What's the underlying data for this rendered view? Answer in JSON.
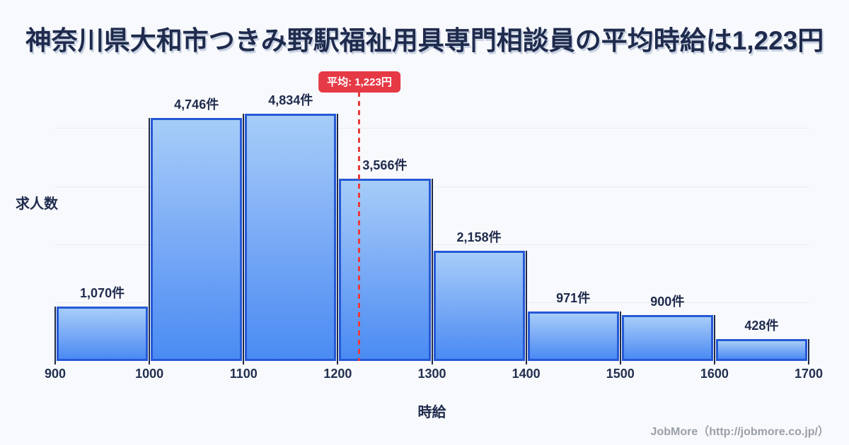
{
  "title": "神奈川県大和市つきみ野駅福祉用具専門相談員の平均時給は1,223円",
  "footer": {
    "credit": "JobMore（http://jobmore.co.jp/）"
  },
  "colors": {
    "background": "#f8f9fc",
    "bar_gradient_top": "#a6cdf8",
    "bar_gradient_bottom": "#4a8bf3",
    "bar_border": "#2659d6",
    "average_red": "#e63946",
    "text_navy": "#1f2b4d",
    "gridline": "#e7ebf3",
    "footer_gray": "#9aa0a8"
  },
  "chart_data": {
    "type": "bar",
    "title": "神奈川県大和市つきみ野駅福祉用具専門相談員の平均時給は1,223円",
    "xlabel": "時給",
    "ylabel": "求人数",
    "bin_edges": [
      900,
      1000,
      1100,
      1200,
      1300,
      1400,
      1500,
      1600,
      1700
    ],
    "x_tick_labels": [
      "900",
      "1000",
      "1100",
      "1200",
      "1300",
      "1400",
      "1500",
      "1600",
      "1700"
    ],
    "categories": [
      "900-1000",
      "1000-1100",
      "1100-1200",
      "1200-1300",
      "1300-1400",
      "1400-1500",
      "1500-1600",
      "1600-1700"
    ],
    "values": [
      1070,
      4746,
      4834,
      3566,
      2158,
      971,
      900,
      428
    ],
    "value_labels": [
      "1,070件",
      "4,746件",
      "4,834件",
      "3,566件",
      "2,158件",
      "971件",
      "900件",
      "428件"
    ],
    "average": {
      "value": 1223,
      "label": "平均: 1,223円"
    },
    "xlim": [
      900,
      1700
    ],
    "ylim": [
      0,
      4834
    ],
    "grid": true,
    "legend": "none",
    "unit": "件"
  }
}
